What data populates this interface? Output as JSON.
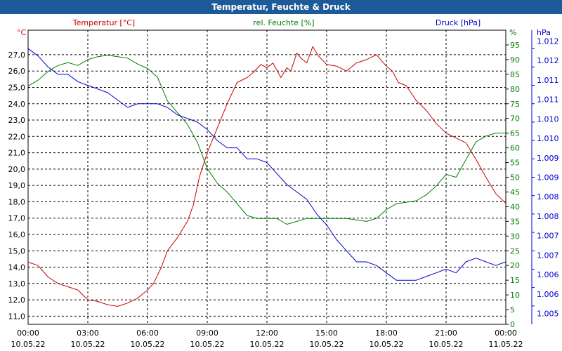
{
  "window": {
    "title": "Temperatur, Feuchte & Druck"
  },
  "chart_data": {
    "type": "line",
    "title": "Temperatur, Feuchte & Druck",
    "axes": {
      "temperature": {
        "unit": "°C",
        "label": "Temperatur [°C]",
        "color": "#cc0000",
        "range": [
          10.5,
          28.5
        ],
        "ticks": [
          "11,0",
          "12,0",
          "13,0",
          "14,0",
          "15,0",
          "16,0",
          "17,0",
          "18,0",
          "19,0",
          "20,0",
          "21,0",
          "22,0",
          "23,0",
          "24,0",
          "25,0",
          "26,0",
          "27,0"
        ]
      },
      "humidity": {
        "unit": "%",
        "label": "rel. Feuchte [%]",
        "color": "#008000",
        "range": [
          0,
          100
        ],
        "ticks": [
          "0",
          "5",
          "10",
          "15",
          "20",
          "25",
          "30",
          "35",
          "40",
          "45",
          "50",
          "55",
          "60",
          "65",
          "70",
          "75",
          "80",
          "85",
          "90",
          "95"
        ]
      },
      "pressure": {
        "unit": "hPa",
        "label": "Druck [hPa]",
        "color": "#0000cc",
        "range": [
          1004.6,
          1012.6
        ],
        "ticks": [
          "1.005",
          "1.006",
          "1.006",
          "1.007",
          "1.007",
          "1.008",
          "1.008",
          "1.009",
          "1.009",
          "1.010",
          "1.010",
          "1.011",
          "1.011",
          "1.012",
          "1.012"
        ]
      }
    },
    "x_ticks": [
      {
        "time": "00:00",
        "date": "10.05.22"
      },
      {
        "time": "03:00",
        "date": "10.05.22"
      },
      {
        "time": "06:00",
        "date": "10.05.22"
      },
      {
        "time": "09:00",
        "date": "10.05.22"
      },
      {
        "time": "12:00",
        "date": "10.05.22"
      },
      {
        "time": "15:00",
        "date": "10.05.22"
      },
      {
        "time": "18:00",
        "date": "10.05.22"
      },
      {
        "time": "21:00",
        "date": "10.05.22"
      },
      {
        "time": "00:00",
        "date": "11.05.22"
      }
    ],
    "x_range_hours": [
      0,
      24
    ],
    "grid": true,
    "series": [
      {
        "name": "Temperatur [°C]",
        "axis": "temperature",
        "color": "#cc0000",
        "points": [
          [
            0,
            14.3
          ],
          [
            0.5,
            14.1
          ],
          [
            1,
            13.4
          ],
          [
            1.5,
            13.0
          ],
          [
            2,
            12.8
          ],
          [
            2.5,
            12.6
          ],
          [
            3,
            12.0
          ],
          [
            3.5,
            11.9
          ],
          [
            4,
            11.7
          ],
          [
            4.5,
            11.6
          ],
          [
            5,
            11.8
          ],
          [
            5.5,
            12.1
          ],
          [
            6,
            12.6
          ],
          [
            6.3,
            13.0
          ],
          [
            6.7,
            14.0
          ],
          [
            7,
            15.0
          ],
          [
            7.5,
            15.8
          ],
          [
            8,
            16.8
          ],
          [
            8.3,
            17.8
          ],
          [
            8.6,
            19.5
          ],
          [
            9,
            21.0
          ],
          [
            9.5,
            22.5
          ],
          [
            10,
            24.0
          ],
          [
            10.5,
            25.3
          ],
          [
            11,
            25.6
          ],
          [
            11.3,
            25.9
          ],
          [
            11.7,
            26.4
          ],
          [
            12,
            26.2
          ],
          [
            12.3,
            26.5
          ],
          [
            12.7,
            25.6
          ],
          [
            13,
            26.2
          ],
          [
            13.2,
            26.0
          ],
          [
            13.5,
            27.1
          ],
          [
            13.7,
            26.8
          ],
          [
            14,
            26.5
          ],
          [
            14.3,
            27.5
          ],
          [
            14.6,
            26.9
          ],
          [
            15,
            26.4
          ],
          [
            15.5,
            26.3
          ],
          [
            16,
            26.0
          ],
          [
            16.5,
            26.5
          ],
          [
            17,
            26.7
          ],
          [
            17.5,
            27.0
          ],
          [
            18,
            26.3
          ],
          [
            18.3,
            26.0
          ],
          [
            18.6,
            25.3
          ],
          [
            19,
            25.1
          ],
          [
            19.5,
            24.2
          ],
          [
            20,
            23.6
          ],
          [
            20.5,
            22.8
          ],
          [
            21,
            22.2
          ],
          [
            21.5,
            21.9
          ],
          [
            22,
            21.6
          ],
          [
            22.5,
            20.6
          ],
          [
            23,
            19.5
          ],
          [
            23.5,
            18.5
          ],
          [
            24,
            17.9
          ]
        ]
      },
      {
        "name": "rel. Feuchte [%]",
        "axis": "humidity",
        "color": "#008000",
        "points": [
          [
            0,
            81
          ],
          [
            0.5,
            83
          ],
          [
            1,
            86
          ],
          [
            1.5,
            88
          ],
          [
            2,
            89
          ],
          [
            2.5,
            88
          ],
          [
            3,
            90
          ],
          [
            3.5,
            91
          ],
          [
            4,
            91.5
          ],
          [
            4.5,
            91
          ],
          [
            5,
            90.5
          ],
          [
            5.5,
            88.5
          ],
          [
            6,
            87
          ],
          [
            6.5,
            84
          ],
          [
            7,
            76
          ],
          [
            7.5,
            72
          ],
          [
            8,
            68
          ],
          [
            8.5,
            62
          ],
          [
            9,
            53
          ],
          [
            9.5,
            48
          ],
          [
            10,
            45
          ],
          [
            10.5,
            41
          ],
          [
            11,
            37
          ],
          [
            11.5,
            36
          ],
          [
            12,
            36
          ],
          [
            12.5,
            36
          ],
          [
            13,
            34
          ],
          [
            13.5,
            35
          ],
          [
            14,
            36
          ],
          [
            14.5,
            36
          ],
          [
            15,
            36
          ],
          [
            15.5,
            36
          ],
          [
            16,
            36
          ],
          [
            16.5,
            35.5
          ],
          [
            17,
            35
          ],
          [
            17.5,
            36
          ],
          [
            18,
            39
          ],
          [
            18.5,
            41
          ],
          [
            19,
            41.5
          ],
          [
            19.5,
            42
          ],
          [
            20,
            44
          ],
          [
            20.5,
            47
          ],
          [
            21,
            51
          ],
          [
            21.5,
            50
          ],
          [
            22,
            56
          ],
          [
            22.5,
            62
          ],
          [
            23,
            64
          ],
          [
            23.5,
            65
          ],
          [
            24,
            65
          ]
        ]
      },
      {
        "name": "Druck [hPa]",
        "axis": "pressure",
        "color": "#0000cc",
        "points": [
          [
            0,
            1012.1
          ],
          [
            0.5,
            1011.9
          ],
          [
            1,
            1011.6
          ],
          [
            1.5,
            1011.4
          ],
          [
            2,
            1011.4
          ],
          [
            2.5,
            1011.2
          ],
          [
            3,
            1011.1
          ],
          [
            3.5,
            1011.0
          ],
          [
            4,
            1010.9
          ],
          [
            4.5,
            1010.7
          ],
          [
            5,
            1010.5
          ],
          [
            5.5,
            1010.6
          ],
          [
            6,
            1010.6
          ],
          [
            6.5,
            1010.6
          ],
          [
            7,
            1010.5
          ],
          [
            7.5,
            1010.3
          ],
          [
            8,
            1010.2
          ],
          [
            8.5,
            1010.1
          ],
          [
            9,
            1009.9
          ],
          [
            9.5,
            1009.6
          ],
          [
            10,
            1009.4
          ],
          [
            10.5,
            1009.4
          ],
          [
            11,
            1009.1
          ],
          [
            11.5,
            1009.1
          ],
          [
            12,
            1009.0
          ],
          [
            12.5,
            1008.7
          ],
          [
            13,
            1008.4
          ],
          [
            13.5,
            1008.2
          ],
          [
            14,
            1008.0
          ],
          [
            14.5,
            1007.6
          ],
          [
            15,
            1007.3
          ],
          [
            15.5,
            1006.9
          ],
          [
            16,
            1006.6
          ],
          [
            16.5,
            1006.3
          ],
          [
            17,
            1006.3
          ],
          [
            17.5,
            1006.2
          ],
          [
            18,
            1006.0
          ],
          [
            18.5,
            1005.8
          ],
          [
            19,
            1005.8
          ],
          [
            19.5,
            1005.8
          ],
          [
            20,
            1005.9
          ],
          [
            20.5,
            1006.0
          ],
          [
            21,
            1006.1
          ],
          [
            21.5,
            1006.0
          ],
          [
            22,
            1006.3
          ],
          [
            22.5,
            1006.4
          ],
          [
            23,
            1006.3
          ],
          [
            23.5,
            1006.2
          ],
          [
            24,
            1006.3
          ]
        ]
      }
    ]
  }
}
